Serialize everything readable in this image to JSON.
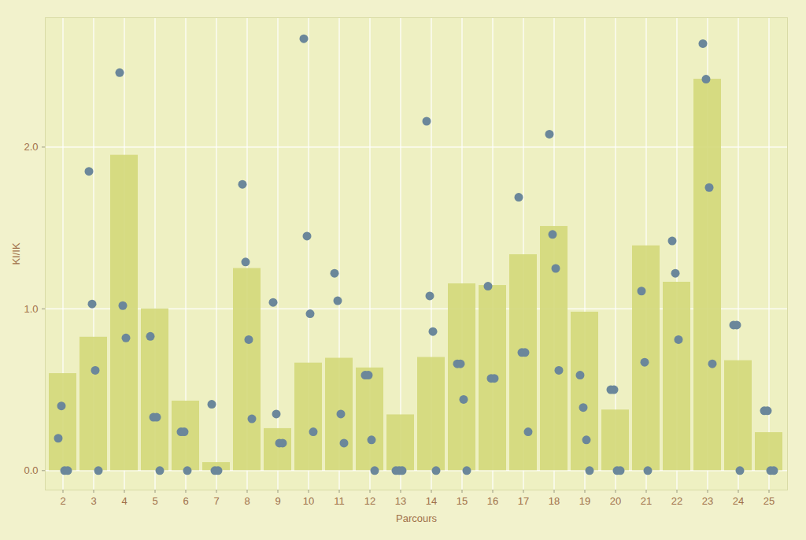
{
  "chart_data": {
    "type": "bar",
    "x_label": "Parcours",
    "y_label": "KI/IK",
    "categories": [
      "2",
      "3",
      "4",
      "5",
      "6",
      "7",
      "8",
      "9",
      "10",
      "11",
      "12",
      "13",
      "14",
      "15",
      "16",
      "17",
      "18",
      "19",
      "20",
      "21",
      "22",
      "23",
      "24",
      "25"
    ],
    "ylim": [
      -0.12,
      2.8
    ],
    "yticks": [
      0,
      1,
      2
    ],
    "grid": true,
    "series": [
      {
        "type": "bar",
        "color": "#d3d87a",
        "values": [
          0.6,
          0.825,
          1.95,
          1.0,
          0.43,
          0.05,
          1.25,
          0.26,
          0.665,
          0.695,
          0.635,
          0.345,
          0.7,
          1.155,
          1.145,
          1.335,
          1.51,
          0.98,
          0.375,
          1.39,
          1.165,
          2.42,
          0.68,
          0.235
        ]
      },
      {
        "type": "scatter",
        "color": "#6b879a",
        "marker": "circle",
        "values": [
          [
            0.2,
            0.4,
            0,
            0
          ],
          [
            1.85,
            1.03,
            0.62,
            0
          ],
          [
            2.46,
            1.02,
            0.82
          ],
          [
            0.83,
            0.33,
            0.33,
            0
          ],
          [
            0.24,
            0.24,
            0
          ],
          [
            0.41,
            0,
            0
          ],
          [
            1.77,
            1.29,
            0.81,
            0.32
          ],
          [
            1.04,
            0.35,
            0.17,
            0.17
          ],
          [
            2.67,
            1.45,
            0.97,
            0.24
          ],
          [
            1.22,
            1.05,
            0.35,
            0.17
          ],
          [
            0.59,
            0.59,
            0.19,
            0
          ],
          [
            0,
            0,
            0
          ],
          [
            2.16,
            1.08,
            0.86,
            0
          ],
          [
            0.66,
            0.66,
            0.44,
            0
          ],
          [
            1.14,
            0.57,
            0.57
          ],
          [
            1.69,
            0.73,
            0.73,
            0.24
          ],
          [
            2.08,
            1.46,
            1.25,
            0.62
          ],
          [
            0.59,
            0.39,
            0.19,
            0
          ],
          [
            0.5,
            0.5,
            0,
            0
          ],
          [
            1.11,
            0.67,
            0
          ],
          [
            1.42,
            1.22,
            0.81
          ],
          [
            2.64,
            2.42,
            1.75,
            0.66
          ],
          [
            0.9,
            0.9,
            0
          ],
          [
            0.37,
            0.37,
            0,
            0
          ]
        ]
      }
    ]
  }
}
